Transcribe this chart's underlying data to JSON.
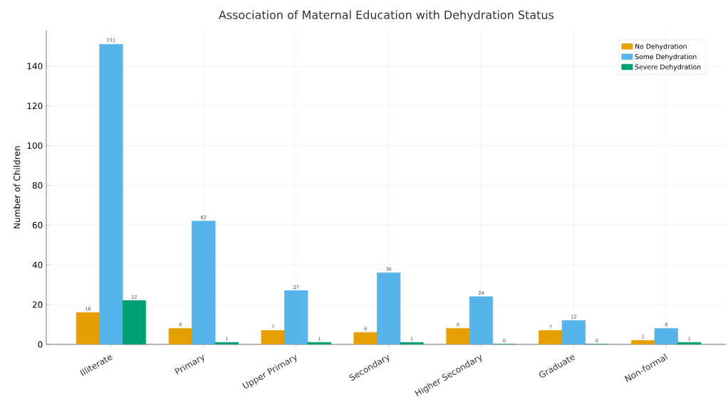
{
  "chart_data": {
    "type": "bar",
    "title": "Association of Maternal Education with Dehydration Status",
    "ylabel": "Number of Children",
    "categories": [
      "Illiterate",
      "Primary",
      "Upper Primary",
      "Secondary",
      "Higher Secondary",
      "Graduate",
      "Non-formal"
    ],
    "series": [
      {
        "name": "No Dehydration",
        "color": "#e69f00",
        "values": [
          16,
          8,
          7,
          6,
          8,
          7,
          2
        ]
      },
      {
        "name": "Some Dehydration",
        "color": "#56b4e9",
        "values": [
          151,
          62,
          27,
          36,
          24,
          12,
          8
        ]
      },
      {
        "name": "Severe Dehydration",
        "color": "#009e73",
        "values": [
          22,
          1,
          1,
          1,
          0,
          0,
          1
        ]
      }
    ],
    "ylim": [
      0,
      158
    ],
    "yticks": [
      0,
      20,
      40,
      60,
      80,
      100,
      120,
      140
    ],
    "grid": true,
    "legend": "top right",
    "data_labels": true
  }
}
